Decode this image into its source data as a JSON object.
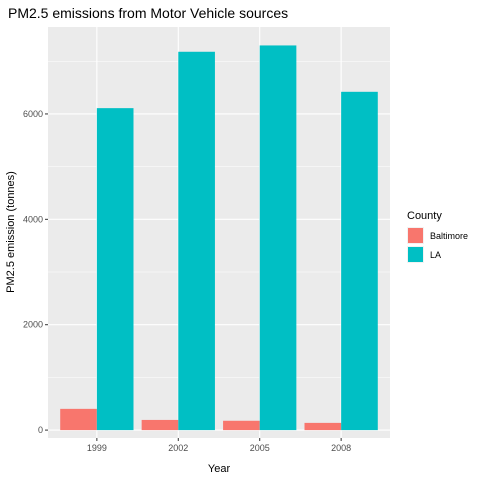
{
  "chart_data": {
    "type": "bar",
    "title": "PM2.5 emissions from Motor Vehicle sources",
    "xlabel": "Year",
    "ylabel": "PM2.5 emission (tonnes)",
    "categories": [
      "1999",
      "2002",
      "2005",
      "2008"
    ],
    "series": [
      {
        "name": "Baltimore",
        "color": "#f8766d",
        "values": [
          403,
          193,
          177,
          137
        ]
      },
      {
        "name": "LA",
        "color": "#00bfc4",
        "values": [
          6110,
          7180,
          7300,
          6420
        ]
      }
    ],
    "ylim": [
      -150,
      7650
    ],
    "yticks": [
      0,
      2000,
      4000,
      6000
    ],
    "ytick_labels": [
      "0",
      "2000",
      "4000",
      "6000"
    ],
    "grid": true,
    "legend": {
      "title": "County",
      "placement": "right"
    }
  }
}
